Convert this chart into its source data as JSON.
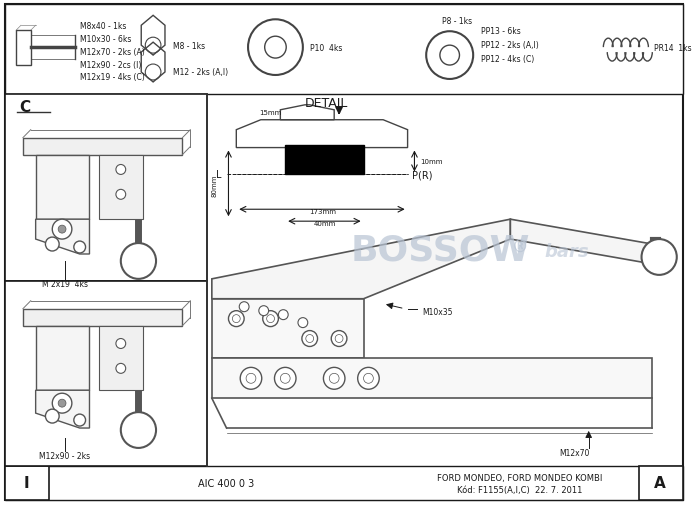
{
  "bg_color": "#ffffff",
  "border_color": "#1a1a1a",
  "text_color": "#1a1a1a",
  "line_color": "#333333",
  "fig_width": 7.0,
  "fig_height": 5.06,
  "top_labels_left": [
    "M8x40 - 1ks",
    "M10x30 - 6ks",
    "M12x70 - 2ks (A)",
    "M12x90 - 2cs (I)",
    "M12x19 - 4ks (C)"
  ],
  "label_nut1": "M8 - 1ks",
  "label_nut2": "M12 - 2ks (A,I)",
  "label_washer": "P10  4ks",
  "label_p8": "P8 - 1ks",
  "label_pp": [
    "PP13 - 6ks",
    "PP12 - 2ks (A,I)",
    "PP12 - 4ks (C)"
  ],
  "label_pr14": "PR14  1ks",
  "label_c": "C",
  "label_i": "I",
  "label_a": "A",
  "label_aic": "AIC 400 0 3",
  "label_ford1": "FORD MONDEO, FORD MONDEO KOMBI",
  "label_ford2": "Kód: F1155(A,I,C)  22. 7. 2011",
  "label_detail": "DETAIL",
  "label_L": "L",
  "label_PR": "P(R)",
  "label_80mm": "80mm",
  "label_15mm": "15mm",
  "label_173mm": "173mm",
  "label_10mm": "10mm",
  "label_40mm": "40mm",
  "label_m2x19": "M 2x19  4ks",
  "label_m12x90": "M12x90 - 2ks",
  "label_m10x35": "M10x35",
  "label_m12x70": "M12x70",
  "watermark_text": "BOSSOW",
  "watermark_reg": "®",
  "watermark_bars": " bars",
  "watermark_color": "#b8c4d4"
}
